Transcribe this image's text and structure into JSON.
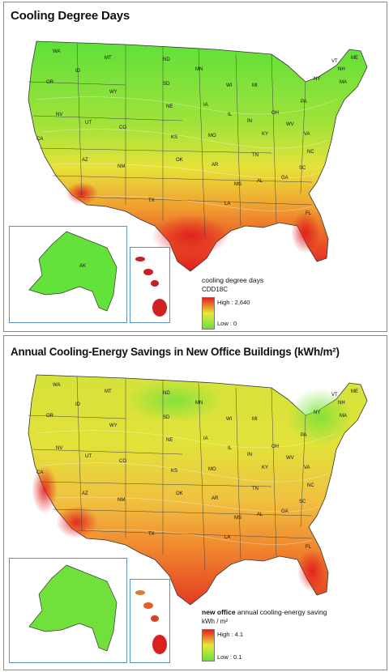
{
  "maps": [
    {
      "title": "Cooling Degree Days",
      "legend": {
        "caption_bold": "",
        "caption": "cooling degree days",
        "unit": "CDD18C",
        "high_label": "High : 2,640",
        "low_label": "Low : 0"
      },
      "colors": {
        "low": "#66e23a",
        "mid": "#e8e83a",
        "high": "#e81e1e"
      }
    },
    {
      "title": "Annual Cooling-Energy Savings in New Office Buildings (kWh/m²)",
      "legend": {
        "caption_bold": "new office",
        "caption": " annual cooling-energy saving",
        "unit": "kWh / m²",
        "high_label": "High : 4.1",
        "low_label": "Low : 0.1"
      },
      "colors": {
        "low": "#66e23a",
        "mid": "#e8e83a",
        "high": "#e81e1e"
      }
    }
  ],
  "state_labels": [
    "WA",
    "OR",
    "ID",
    "MT",
    "ND",
    "MN",
    "WI",
    "SD",
    "WY",
    "NE",
    "IA",
    "IL",
    "MI",
    "NY",
    "VT",
    "ME",
    "NH",
    "MA",
    "NV",
    "UT",
    "CO",
    "KS",
    "MO",
    "IN",
    "OH",
    "PA",
    "CA",
    "AZ",
    "NM",
    "OK",
    "AR",
    "TN",
    "KY",
    "WV",
    "VA",
    "NC",
    "SC",
    "GA",
    "AL",
    "MS",
    "LA",
    "TX",
    "FL"
  ],
  "inset_labels": [
    "AK"
  ]
}
